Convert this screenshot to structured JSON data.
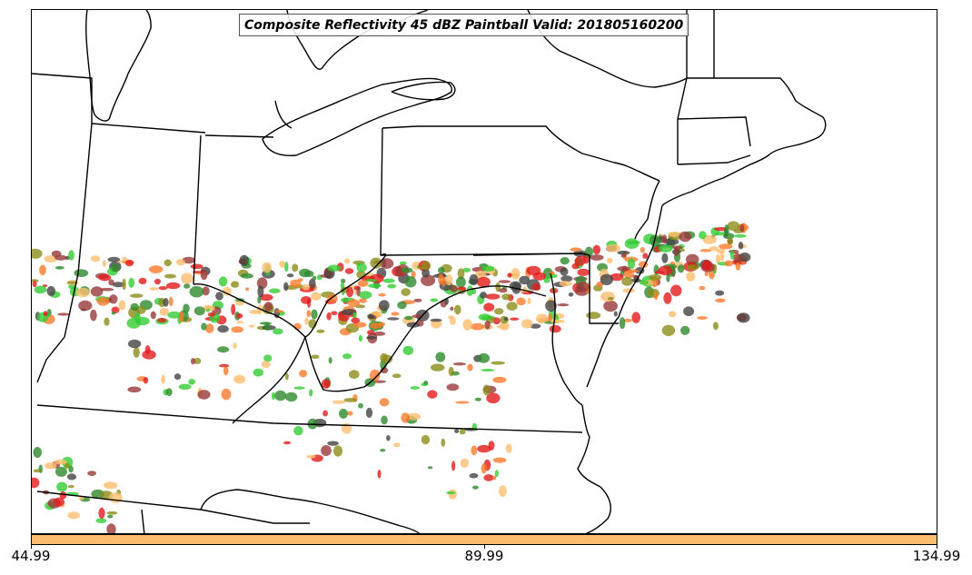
{
  "title": "Composite Reflectivity 45 dBZ Paintball Valid: 201805160200",
  "colorbar": {
    "color": "#fdbf6f",
    "ticks": [
      "44.99",
      "89.99",
      "134.99"
    ]
  },
  "member_colors": [
    "#e31a1c",
    "#fb7a2a",
    "#fdbf6f",
    "#33cc33",
    "#8c8c1a",
    "#9a3a3a",
    "#444444",
    "#2e8b2e"
  ]
}
